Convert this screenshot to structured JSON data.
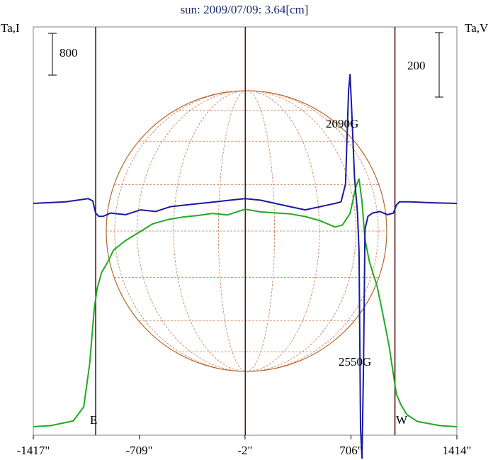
{
  "title": "sun: 2009/07/09: 3.64[cm]",
  "left_axis_label": "Ta,I",
  "right_axis_label": "Ta,V",
  "left_scale_label": "800",
  "right_scale_label": "200",
  "east_label": "E",
  "west_label": "W",
  "annotations": [
    "2090G",
    "2550G"
  ],
  "colors": {
    "intensity": "#22aa22",
    "polarization": "#1a1aa0",
    "disk": "#b5652e",
    "grid": "#c8794a",
    "marker_lines": "#5a1010",
    "title": "#1a2a6c"
  },
  "chart_data": {
    "type": "line",
    "title": "sun: 2009/07/09: 3.64[cm]",
    "x_ticks": [
      "-1417\"",
      "-709\"",
      "-2\"",
      "706\"",
      "1414\""
    ],
    "x_tick_values": [
      -1417,
      -709,
      -2,
      706,
      1414
    ],
    "xlim": [
      -1417,
      1414
    ],
    "limb_markers_arcsec": [
      -1000,
      0,
      1000
    ],
    "annotations": [
      {
        "text": "2090G",
        "x": 700
      },
      {
        "text": "2550G",
        "x": 780
      }
    ],
    "series": [
      {
        "name": "Ta,I",
        "color": "#22aa22",
        "axis": "left",
        "x": [
          -1417,
          -1300,
          -1150,
          -1080,
          -1040,
          -1010,
          -990,
          -960,
          -920,
          -880,
          -800,
          -720,
          -620,
          -520,
          -420,
          -320,
          -220,
          -120,
          -2,
          100,
          200,
          300,
          400,
          500,
          600,
          650,
          700,
          740,
          760,
          780,
          800,
          830,
          880,
          920,
          960,
          990,
          1010,
          1040,
          1080,
          1150,
          1300,
          1414
        ],
        "values": [
          0,
          20,
          110,
          380,
          1200,
          2250,
          2650,
          2950,
          3150,
          3380,
          3560,
          3700,
          3880,
          3960,
          4010,
          4040,
          4080,
          4050,
          4160,
          4110,
          4090,
          4070,
          4020,
          3940,
          3820,
          3860,
          4080,
          4600,
          4740,
          4300,
          3580,
          3150,
          2700,
          2140,
          1560,
          1000,
          620,
          420,
          230,
          100,
          20,
          0
        ]
      },
      {
        "name": "Ta,V",
        "color": "#1a1aa0",
        "axis": "right",
        "x": [
          -1417,
          -1200,
          -1050,
          -1020,
          -1000,
          -980,
          -950,
          -900,
          -800,
          -700,
          -600,
          -500,
          -400,
          -300,
          -200,
          -100,
          -2,
          100,
          200,
          300,
          400,
          450,
          500,
          550,
          600,
          640,
          670,
          690,
          700,
          710,
          730,
          750,
          760,
          770,
          780,
          790,
          800,
          820,
          850,
          900,
          950,
          990,
          1010,
          1030,
          1100,
          1250,
          1414
        ],
        "values": [
          0,
          5,
          15,
          8,
          -30,
          -40,
          -40,
          -30,
          -35,
          -20,
          -25,
          -10,
          -5,
          0,
          5,
          10,
          15,
          10,
          0,
          -10,
          -20,
          -15,
          -10,
          -5,
          0,
          5,
          60,
          350,
          400,
          300,
          80,
          -30,
          -150,
          -700,
          -790,
          -500,
          -80,
          -40,
          -30,
          -25,
          -35,
          -30,
          -5,
          5,
          5,
          2,
          0
        ]
      }
    ]
  }
}
